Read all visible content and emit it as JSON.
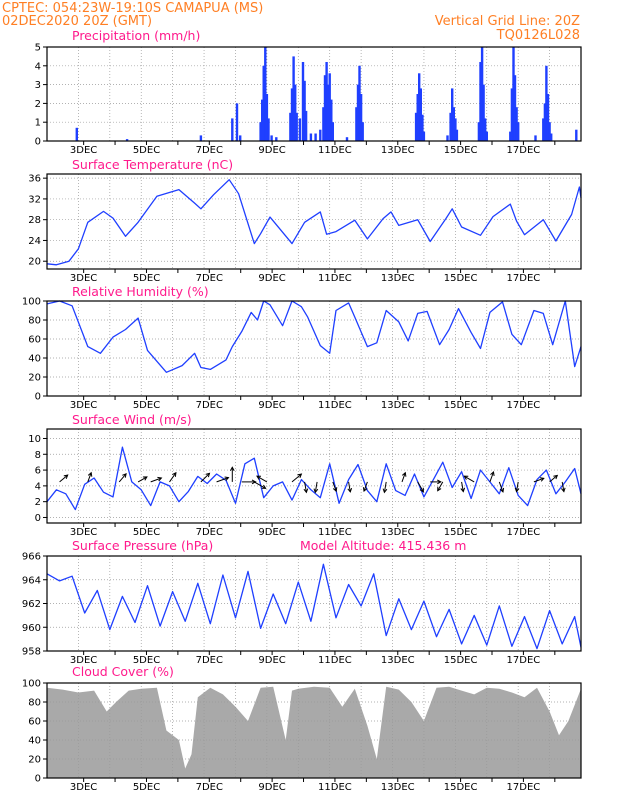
{
  "header": {
    "line1": "CPTEC:   054:23W-19:10S   CAMAPUA (MS)",
    "line2": "02DEC2020 20Z (GMT)",
    "grid_note": "Vertical Grid Line: 20Z",
    "code": "TQ0126L028"
  },
  "x_axis": {
    "start": "2020-12-02T20:00Z",
    "end": "2020-12-17T00:00Z",
    "tick_labels": [
      "3DEC",
      "5DEC",
      "7DEC",
      "9DEC",
      "11DEC",
      "13DEC",
      "15DEC",
      "17DEC"
    ],
    "minor_ticks": "daily 00Z",
    "vertical_grid": "dotted at 20Z each day"
  },
  "colors": {
    "header": "#ff7f24",
    "panel_title": "#ff1a8c",
    "series": "#1f3fff",
    "cloud": "#a9a9a9",
    "grid": "#999999"
  },
  "chart_data": [
    {
      "id": "precip",
      "type": "bar",
      "title": "Precipitation (mm/h)",
      "ylim": [
        0,
        5
      ],
      "yticks": [
        "0",
        "1",
        "2",
        "3",
        "4",
        "5"
      ],
      "grid": true,
      "events": [
        {
          "day": 0.95,
          "value": 0.7
        },
        {
          "day": 2.55,
          "value": 0.1
        },
        {
          "day": 4.9,
          "value": 0.3
        },
        {
          "day": 5.9,
          "value": 1.2
        },
        {
          "day": 6.05,
          "value": 2.0
        },
        {
          "day": 6.15,
          "value": 0.3
        },
        {
          "day": 6.8,
          "value": 1.0
        },
        {
          "day": 6.85,
          "value": 2.2
        },
        {
          "day": 6.9,
          "value": 4.0
        },
        {
          "day": 6.95,
          "value": 5.0
        },
        {
          "day": 7.0,
          "value": 2.5
        },
        {
          "day": 7.05,
          "value": 1.2
        },
        {
          "day": 7.15,
          "value": 0.3
        },
        {
          "day": 7.3,
          "value": 0.2
        },
        {
          "day": 7.75,
          "value": 1.5
        },
        {
          "day": 7.8,
          "value": 2.8
        },
        {
          "day": 7.85,
          "value": 4.5
        },
        {
          "day": 7.9,
          "value": 3.0
        },
        {
          "day": 7.95,
          "value": 1.5
        },
        {
          "day": 8.05,
          "value": 1.2
        },
        {
          "day": 8.15,
          "value": 4.2
        },
        {
          "day": 8.2,
          "value": 3.2
        },
        {
          "day": 8.25,
          "value": 1.6
        },
        {
          "day": 8.4,
          "value": 0.4
        },
        {
          "day": 8.55,
          "value": 0.4
        },
        {
          "day": 8.7,
          "value": 0.6
        },
        {
          "day": 8.8,
          "value": 1.8
        },
        {
          "day": 8.85,
          "value": 3.5
        },
        {
          "day": 8.9,
          "value": 4.2
        },
        {
          "day": 8.95,
          "value": 3.0
        },
        {
          "day": 9.0,
          "value": 3.6
        },
        {
          "day": 9.05,
          "value": 2.2
        },
        {
          "day": 9.1,
          "value": 1.0
        },
        {
          "day": 9.55,
          "value": 0.2
        },
        {
          "day": 9.85,
          "value": 1.8
        },
        {
          "day": 9.9,
          "value": 3.0
        },
        {
          "day": 9.95,
          "value": 4.0
        },
        {
          "day": 10.0,
          "value": 2.5
        },
        {
          "day": 10.05,
          "value": 1.0
        },
        {
          "day": 11.75,
          "value": 1.5
        },
        {
          "day": 11.8,
          "value": 2.5
        },
        {
          "day": 11.85,
          "value": 3.6
        },
        {
          "day": 11.9,
          "value": 2.8
        },
        {
          "day": 11.95,
          "value": 1.4
        },
        {
          "day": 12.0,
          "value": 0.5
        },
        {
          "day": 12.75,
          "value": 0.3
        },
        {
          "day": 12.85,
          "value": 1.5
        },
        {
          "day": 12.9,
          "value": 2.8
        },
        {
          "day": 12.95,
          "value": 1.8
        },
        {
          "day": 13.0,
          "value": 1.2
        },
        {
          "day": 13.05,
          "value": 0.6
        },
        {
          "day": 13.75,
          "value": 1.0
        },
        {
          "day": 13.8,
          "value": 4.2
        },
        {
          "day": 13.85,
          "value": 5.0
        },
        {
          "day": 13.9,
          "value": 3.0
        },
        {
          "day": 13.95,
          "value": 1.2
        },
        {
          "day": 14.0,
          "value": 0.5
        },
        {
          "day": 14.75,
          "value": 0.5
        },
        {
          "day": 14.8,
          "value": 2.8
        },
        {
          "day": 14.85,
          "value": 5.0
        },
        {
          "day": 14.9,
          "value": 3.5
        },
        {
          "day": 14.95,
          "value": 1.8
        },
        {
          "day": 15.0,
          "value": 1.0
        },
        {
          "day": 15.55,
          "value": 0.3
        },
        {
          "day": 15.8,
          "value": 1.2
        },
        {
          "day": 15.85,
          "value": 2.0
        },
        {
          "day": 15.9,
          "value": 4.0
        },
        {
          "day": 15.95,
          "value": 2.5
        },
        {
          "day": 16.0,
          "value": 1.0
        },
        {
          "day": 16.05,
          "value": 0.4
        },
        {
          "day": 16.85,
          "value": 0.6
        }
      ]
    },
    {
      "id": "temp",
      "type": "line",
      "title": "Surface Temperature (nC)",
      "ylim": [
        18.5,
        36.8
      ],
      "yticks": [
        "20",
        "24",
        "28",
        "32",
        "36"
      ],
      "grid": true,
      "x": [
        0.0,
        0.3,
        0.7,
        1.0,
        1.3,
        1.8,
        2.1,
        2.5,
        2.9,
        3.5,
        4.2,
        4.7,
        4.9,
        5.3,
        5.8,
        6.1,
        6.6,
        6.8,
        7.1,
        7.8,
        8.2,
        8.7,
        8.9,
        9.2,
        9.8,
        10.2,
        10.7,
        10.95,
        11.2,
        11.8,
        12.2,
        12.7,
        12.9,
        13.2,
        13.8,
        14.2,
        14.75,
        14.95,
        15.2,
        15.8,
        16.2,
        16.7,
        16.95,
        17.0
      ],
      "y": [
        19.5,
        19.3,
        20.0,
        22.4,
        27.5,
        29.6,
        28.3,
        24.8,
        27.5,
        32.5,
        33.8,
        31.2,
        30.1,
        32.8,
        35.7,
        33.0,
        23.4,
        25.3,
        28.5,
        23.4,
        27.5,
        29.5,
        25.2,
        25.7,
        27.9,
        24.3,
        28.2,
        29.5,
        26.9,
        28.0,
        23.8,
        28.2,
        30.1,
        26.6,
        25.0,
        28.6,
        31.0,
        27.7,
        25.1,
        28.0,
        23.9,
        29.0,
        34.3,
        32.2
      ]
    },
    {
      "id": "rh",
      "type": "line",
      "title": "Relative Humidity (%)",
      "ylim": [
        0,
        100
      ],
      "yticks": [
        "0",
        "20",
        "40",
        "60",
        "80",
        "100"
      ],
      "grid": true,
      "x": [
        0.0,
        0.4,
        0.8,
        1.3,
        1.7,
        2.1,
        2.5,
        2.9,
        3.2,
        3.8,
        4.3,
        4.7,
        4.9,
        5.2,
        5.7,
        5.9,
        6.2,
        6.5,
        6.7,
        6.9,
        7.1,
        7.5,
        7.8,
        8.1,
        8.3,
        8.7,
        9.0,
        9.2,
        9.6,
        9.8,
        10.2,
        10.5,
        10.8,
        11.2,
        11.5,
        11.8,
        12.1,
        12.5,
        12.8,
        13.1,
        13.5,
        13.8,
        14.1,
        14.5,
        14.8,
        15.1,
        15.5,
        15.8,
        16.1,
        16.5,
        16.8,
        17.0
      ],
      "y": [
        97,
        100,
        95,
        52,
        45,
        62,
        70,
        82,
        48,
        25,
        32,
        45,
        30,
        28,
        38,
        52,
        68,
        88,
        80,
        100,
        96,
        74,
        100,
        94,
        83,
        53,
        45,
        90,
        98,
        83,
        52,
        56,
        90,
        78,
        58,
        87,
        89,
        54,
        70,
        92,
        67,
        50,
        88,
        99,
        65,
        54,
        90,
        87,
        54,
        100,
        31,
        52
      ]
    },
    {
      "id": "wind",
      "type": "line",
      "title": "Surface Wind (m/s)",
      "ylim": [
        -0.7,
        11.2
      ],
      "yticks": [
        "0",
        "2",
        "4",
        "6",
        "8",
        "10"
      ],
      "grid": true,
      "x": [
        0.0,
        0.3,
        0.6,
        0.9,
        1.2,
        1.5,
        1.8,
        2.1,
        2.4,
        2.7,
        3.0,
        3.3,
        3.6,
        3.9,
        4.2,
        4.5,
        4.8,
        5.1,
        5.4,
        5.7,
        6.0,
        6.3,
        6.6,
        6.9,
        7.2,
        7.5,
        7.8,
        8.1,
        8.4,
        8.7,
        9.0,
        9.3,
        9.6,
        9.9,
        10.2,
        10.5,
        10.8,
        11.1,
        11.4,
        11.7,
        12.0,
        12.3,
        12.6,
        12.9,
        13.2,
        13.5,
        13.8,
        14.1,
        14.4,
        14.7,
        15.0,
        15.3,
        15.6,
        15.9,
        16.2,
        16.5,
        16.8,
        17.0
      ],
      "y": [
        2.0,
        3.5,
        3.0,
        1.0,
        4.2,
        5.0,
        3.2,
        2.6,
        8.9,
        4.5,
        3.5,
        1.5,
        4.5,
        4.0,
        2.0,
        3.3,
        5.2,
        4.3,
        5.5,
        4.7,
        1.8,
        6.8,
        7.5,
        2.5,
        4.0,
        4.5,
        2.2,
        4.8,
        3.5,
        2.5,
        6.8,
        1.8,
        4.8,
        6.7,
        3.4,
        2.0,
        6.8,
        3.4,
        2.8,
        5.5,
        2.6,
        4.8,
        7.0,
        3.8,
        5.8,
        2.4,
        6.0,
        4.5,
        3.0,
        6.3,
        2.8,
        1.5,
        4.8,
        6.0,
        3.0,
        4.5,
        6.2,
        3.0
      ],
      "arrows": [
        {
          "day": 0.4,
          "speed": 3.5,
          "dir": 230
        },
        {
          "day": 1.3,
          "speed": 3.0,
          "dir": 200
        },
        {
          "day": 2.3,
          "speed": 3.5,
          "dir": 220
        },
        {
          "day": 2.9,
          "speed": 3.2,
          "dir": 240
        },
        {
          "day": 3.3,
          "speed": 4.0,
          "dir": 250
        },
        {
          "day": 3.9,
          "speed": 3.8,
          "dir": 215
        },
        {
          "day": 4.9,
          "speed": 4.5,
          "dir": 225
        },
        {
          "day": 5.4,
          "speed": 4.8,
          "dir": 250
        },
        {
          "day": 5.9,
          "speed": 6.0,
          "dir": 180
        },
        {
          "day": 6.2,
          "speed": 5.5,
          "dir": 270
        },
        {
          "day": 6.6,
          "speed": 5.0,
          "dir": 300
        },
        {
          "day": 7.0,
          "speed": 4.0,
          "dir": 120
        },
        {
          "day": 7.8,
          "speed": 4.5,
          "dir": 230
        },
        {
          "day": 8.2,
          "speed": 3.5,
          "dir": 350
        },
        {
          "day": 8.6,
          "speed": 3.5,
          "dir": 10
        },
        {
          "day": 9.1,
          "speed": 3.0,
          "dir": 340
        },
        {
          "day": 9.6,
          "speed": 3.2,
          "dir": 350
        },
        {
          "day": 10.2,
          "speed": 3.0,
          "dir": 20
        },
        {
          "day": 10.8,
          "speed": 3.5,
          "dir": 10
        },
        {
          "day": 11.3,
          "speed": 3.0,
          "dir": 200
        },
        {
          "day": 11.8,
          "speed": 4.0,
          "dir": 330
        },
        {
          "day": 12.2,
          "speed": 3.5,
          "dir": 270
        },
        {
          "day": 12.6,
          "speed": 3.2,
          "dir": 30
        },
        {
          "day": 13.2,
          "speed": 3.0,
          "dir": 350
        },
        {
          "day": 13.6,
          "speed": 4.0,
          "dir": 120
        },
        {
          "day": 14.1,
          "speed": 3.5,
          "dir": 200
        },
        {
          "day": 14.4,
          "speed": 3.5,
          "dir": 340
        },
        {
          "day": 15.0,
          "speed": 3.0,
          "dir": 10
        },
        {
          "day": 15.5,
          "speed": 3.5,
          "dir": 250
        },
        {
          "day": 16.0,
          "speed": 3.2,
          "dir": 230
        },
        {
          "day": 16.4,
          "speed": 3.0,
          "dir": 350
        }
      ]
    },
    {
      "id": "pressure",
      "type": "line",
      "title": "Surface Pressure (hPa)",
      "note": "Model Altitude: 415.436  m",
      "ylim": [
        958,
        966
      ],
      "yticks": [
        "958",
        "960",
        "962",
        "964",
        "966"
      ],
      "grid": true,
      "x": [
        0.0,
        0.4,
        0.8,
        1.2,
        1.6,
        2.0,
        2.4,
        2.8,
        3.2,
        3.6,
        4.0,
        4.4,
        4.8,
        5.2,
        5.6,
        6.0,
        6.4,
        6.8,
        7.2,
        7.6,
        8.0,
        8.4,
        8.8,
        9.2,
        9.6,
        10.0,
        10.4,
        10.8,
        11.2,
        11.6,
        12.0,
        12.4,
        12.8,
        13.2,
        13.6,
        14.0,
        14.4,
        14.8,
        15.2,
        15.6,
        16.0,
        16.4,
        16.8,
        17.0
      ],
      "y": [
        964.5,
        963.9,
        964.3,
        961.2,
        963.1,
        959.8,
        962.6,
        960.4,
        963.5,
        960.1,
        963.0,
        960.5,
        963.7,
        960.3,
        964.4,
        960.8,
        964.7,
        959.9,
        962.8,
        960.3,
        963.8,
        960.5,
        965.3,
        960.8,
        963.6,
        961.8,
        964.5,
        959.3,
        962.4,
        959.8,
        962.2,
        959.2,
        961.5,
        958.6,
        961.0,
        958.5,
        961.8,
        958.4,
        960.9,
        958.2,
        961.4,
        958.6,
        960.9,
        958.3
      ]
    },
    {
      "id": "cloud",
      "type": "area",
      "title": "Cloud Cover (%)",
      "ylim": [
        0,
        100
      ],
      "yticks": [
        "0",
        "20",
        "40",
        "60",
        "80",
        "100"
      ],
      "grid": true,
      "x": [
        0.0,
        0.5,
        1.0,
        1.5,
        1.9,
        2.2,
        2.6,
        3.0,
        3.5,
        3.8,
        4.2,
        4.4,
        4.6,
        4.8,
        5.2,
        5.6,
        6.0,
        6.4,
        6.8,
        7.2,
        7.6,
        7.8,
        8.0,
        8.5,
        9.0,
        9.4,
        9.8,
        10.2,
        10.5,
        10.8,
        11.2,
        11.6,
        12.0,
        12.4,
        12.8,
        13.2,
        13.6,
        14.0,
        14.4,
        14.8,
        15.2,
        15.6,
        16.0,
        16.3,
        16.6,
        17.0
      ],
      "y": [
        95,
        93,
        90,
        92,
        70,
        80,
        92,
        94,
        95,
        50,
        40,
        10,
        25,
        85,
        95,
        88,
        75,
        60,
        95,
        96,
        40,
        92,
        94,
        96,
        95,
        75,
        94,
        55,
        20,
        96,
        93,
        80,
        60,
        95,
        96,
        92,
        88,
        95,
        94,
        90,
        85,
        95,
        70,
        45,
        60,
        94
      ]
    }
  ]
}
